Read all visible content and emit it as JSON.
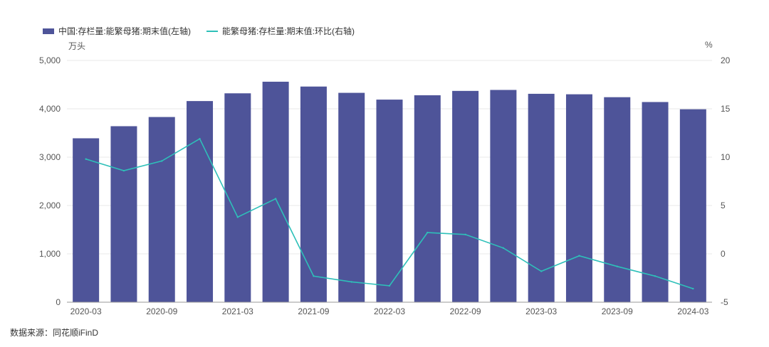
{
  "legend": {
    "bar_label": "中国:存栏量:能繁母猪:期末值(左轴)",
    "line_label": "能繁母猪:存栏量:期末值:环比(右轴)"
  },
  "units": {
    "left": "万头",
    "right": "%"
  },
  "source": "数据来源：同花顺iFinD",
  "colors": {
    "bar": "#4e5499",
    "line": "#2ec0b9",
    "grid": "#e8e8e8",
    "axis": "#555555"
  },
  "chart_data": {
    "type": "bar",
    "categories": [
      "2020-03",
      "2020-06",
      "2020-09",
      "2020-12",
      "2021-03",
      "2021-06",
      "2021-09",
      "2021-12",
      "2022-03",
      "2022-06",
      "2022-09",
      "2022-12",
      "2023-03",
      "2023-06",
      "2023-09",
      "2023-12",
      "2024-03"
    ],
    "x_tick_labels": [
      "2020-03",
      "2020-09",
      "2021-03",
      "2021-09",
      "2022-03",
      "2022-09",
      "2023-03",
      "2023-09",
      "2024-03"
    ],
    "series": [
      {
        "name": "中国:存栏量:能繁母猪:期末值(左轴)",
        "type": "bar",
        "axis": "left",
        "values": [
          3390,
          3640,
          3830,
          4160,
          4320,
          4560,
          4460,
          4330,
          4190,
          4280,
          4370,
          4390,
          4310,
          4300,
          4240,
          4140,
          3990
        ]
      },
      {
        "name": "能繁母猪:存栏量:期末值:环比(右轴)",
        "type": "line",
        "axis": "right",
        "values": [
          9.8,
          8.6,
          9.6,
          11.9,
          3.8,
          5.7,
          -2.3,
          -2.9,
          -3.3,
          2.2,
          2.0,
          0.6,
          -1.8,
          -0.2,
          -1.3,
          -2.3,
          -3.6
        ]
      }
    ],
    "y_left": {
      "min": 0,
      "max": 5000,
      "ticks": [
        0,
        1000,
        2000,
        3000,
        4000,
        5000
      ],
      "tick_labels": [
        "0",
        "1,000",
        "2,000",
        "3,000",
        "4,000",
        "5,000"
      ]
    },
    "y_right": {
      "min": -5,
      "max": 20,
      "ticks": [
        -5,
        0,
        5,
        10,
        15,
        20
      ],
      "tick_labels": [
        "-5",
        "0",
        "5",
        "10",
        "15",
        "20"
      ]
    },
    "grid": true,
    "legend_position": "top-left"
  }
}
